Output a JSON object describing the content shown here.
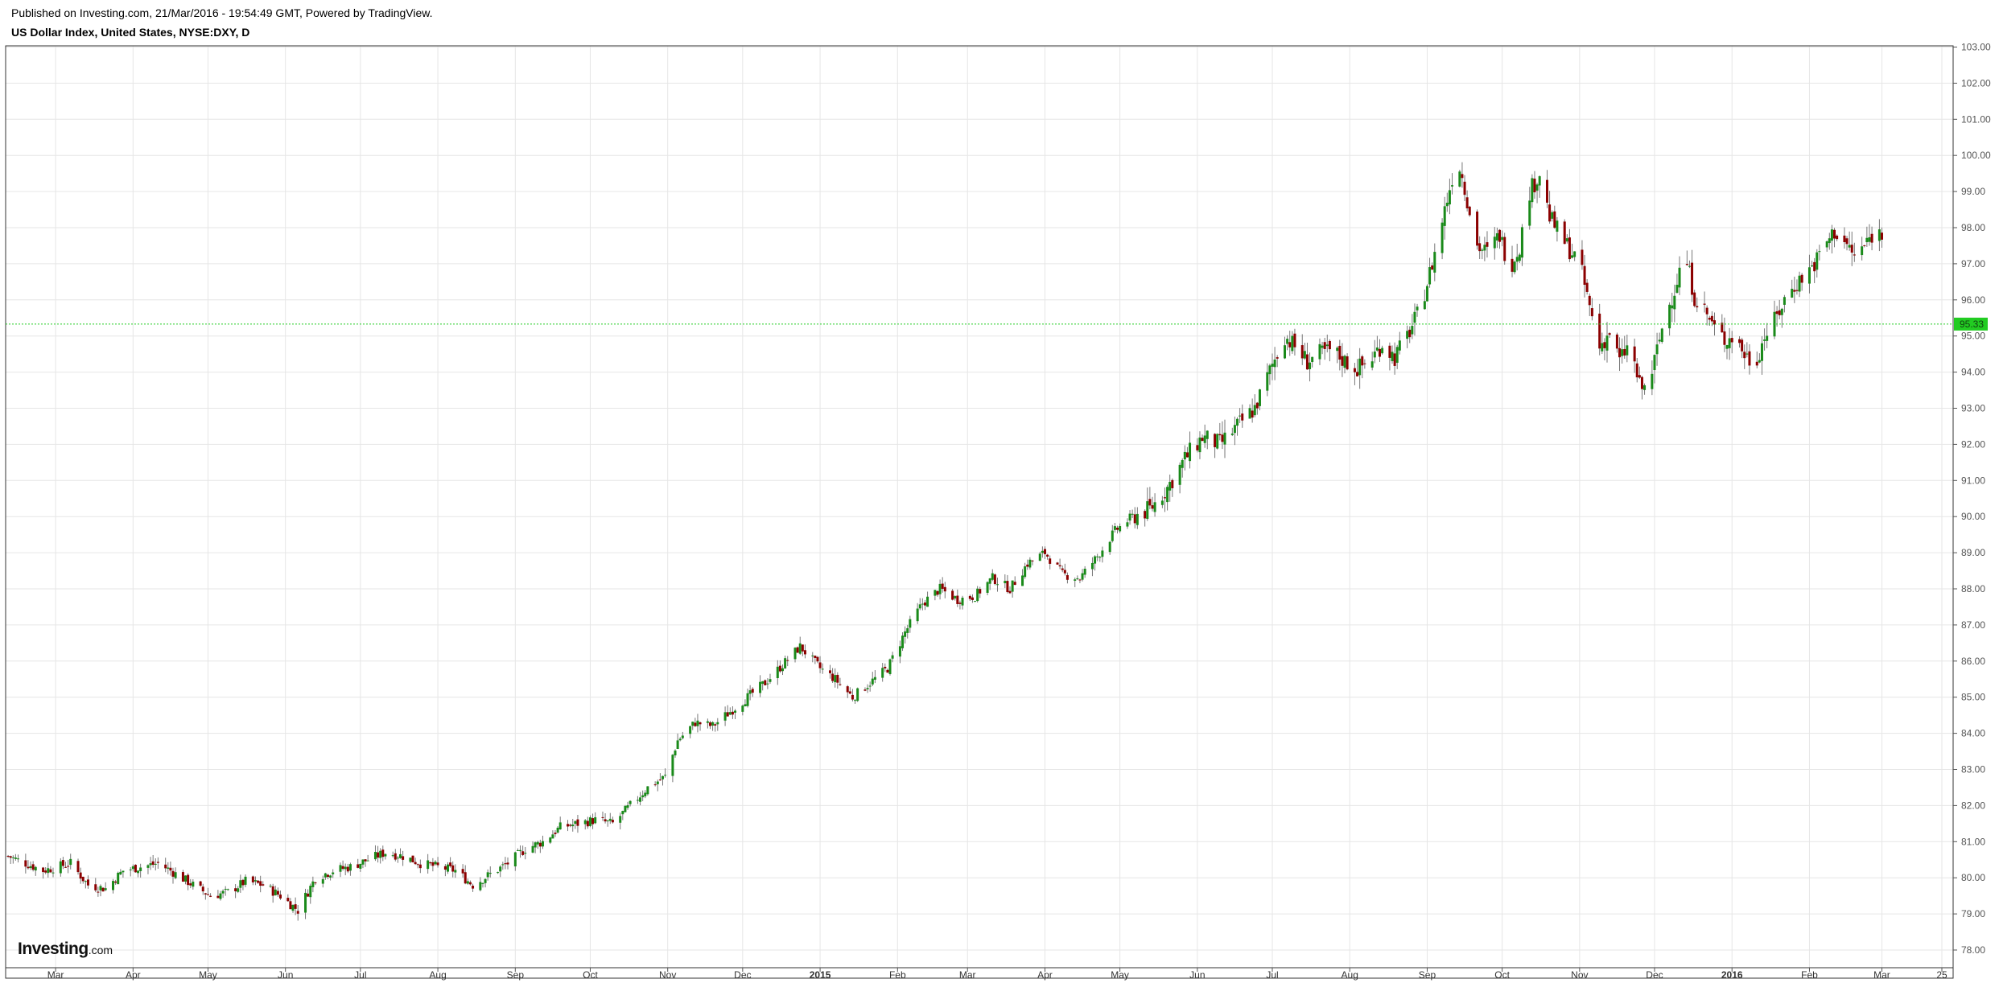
{
  "header": {
    "published": "Published on Investing.com, 21/Mar/2016 - 19:54:49 GMT, Powered by TradingView.",
    "title": "US Dollar Index, United States, NYSE:DXY, D"
  },
  "logo": {
    "bold": "Investing",
    "suffix": ".com"
  },
  "colors": {
    "up": "#1a8a1a",
    "down": "#8b0000",
    "last": "#22cc22",
    "grid": "#e6e6e6"
  },
  "chart_data": {
    "type": "candlestick",
    "title": "US Dollar Index, United States, NYSE:DXY, D",
    "ylim": [
      77.6,
      103.05
    ],
    "y_ticks": [
      "103.00",
      "102.00",
      "101.00",
      "100.00",
      "99.00",
      "98.00",
      "97.00",
      "96.00",
      "95.00",
      "94.00",
      "93.00",
      "92.00",
      "91.00",
      "90.00",
      "89.00",
      "88.00",
      "87.00",
      "86.00",
      "85.00",
      "84.00",
      "83.00",
      "82.00",
      "81.00",
      "80.00",
      "79.00",
      "78.00"
    ],
    "x_ticks": [
      {
        "label": "Mar",
        "date": "2014-03-01"
      },
      {
        "label": "Apr",
        "date": "2014-04-01"
      },
      {
        "label": "May",
        "date": "2014-05-01"
      },
      {
        "label": "Jun",
        "date": "2014-06-01"
      },
      {
        "label": "Jul",
        "date": "2014-07-01"
      },
      {
        "label": "Aug",
        "date": "2014-08-01"
      },
      {
        "label": "Sep",
        "date": "2014-09-01"
      },
      {
        "label": "Oct",
        "date": "2014-10-01"
      },
      {
        "label": "Nov",
        "date": "2014-11-01"
      },
      {
        "label": "Dec",
        "date": "2014-12-01"
      },
      {
        "label": "2015",
        "date": "2015-01-01",
        "bold": true
      },
      {
        "label": "Feb",
        "date": "2015-02-01"
      },
      {
        "label": "Mar",
        "date": "2015-03-01"
      },
      {
        "label": "Apr",
        "date": "2015-04-01"
      },
      {
        "label": "May",
        "date": "2015-05-01"
      },
      {
        "label": "Jun",
        "date": "2015-06-01"
      },
      {
        "label": "Jul",
        "date": "2015-07-01"
      },
      {
        "label": "Aug",
        "date": "2015-08-01"
      },
      {
        "label": "Sep",
        "date": "2015-09-01"
      },
      {
        "label": "Oct",
        "date": "2015-10-01"
      },
      {
        "label": "Nov",
        "date": "2015-11-01"
      },
      {
        "label": "Dec",
        "date": "2015-12-01"
      },
      {
        "label": "2016",
        "date": "2016-01-01",
        "bold": true
      },
      {
        "label": "Feb",
        "date": "2016-02-01"
      },
      {
        "label": "Mar",
        "date": "2016-03-01"
      },
      {
        "label": "25",
        "date": "2016-03-25"
      }
    ],
    "last_price": 95.33,
    "last_price_label": "95.33",
    "series": [
      {
        "values": [
          [
            "2014-02-10",
            80.6
          ],
          [
            "2014-02-24",
            80.2
          ],
          [
            "2014-03-07",
            80.4
          ],
          [
            "2014-03-14",
            79.8
          ],
          [
            "2014-03-21",
            79.7
          ],
          [
            "2014-03-28",
            80.2
          ],
          [
            "2014-04-04",
            80.3
          ],
          [
            "2014-04-11",
            80.4
          ],
          [
            "2014-04-16",
            80.2
          ],
          [
            "2014-04-25",
            79.8
          ],
          [
            "2014-05-02",
            79.5
          ],
          [
            "2014-05-09",
            79.6
          ],
          [
            "2014-05-16",
            79.9
          ],
          [
            "2014-05-23",
            79.8
          ],
          [
            "2014-05-30",
            79.5
          ],
          [
            "2014-06-06",
            79.1
          ],
          [
            "2014-06-13",
            80.0
          ],
          [
            "2014-06-20",
            80.2
          ],
          [
            "2014-06-27",
            80.3
          ],
          [
            "2014-07-04",
            80.5
          ],
          [
            "2014-07-11",
            80.7
          ],
          [
            "2014-07-18",
            80.6
          ],
          [
            "2014-07-25",
            80.4
          ],
          [
            "2014-08-01",
            80.3
          ],
          [
            "2014-08-08",
            80.2
          ],
          [
            "2014-08-15",
            79.8
          ],
          [
            "2014-08-22",
            80.1
          ],
          [
            "2014-08-29",
            80.4
          ],
          [
            "2014-09-05",
            80.8
          ],
          [
            "2014-09-12",
            81.0
          ],
          [
            "2014-09-19",
            81.4
          ],
          [
            "2014-09-26",
            81.5
          ],
          [
            "2014-10-03",
            81.6
          ],
          [
            "2014-10-10",
            81.5
          ],
          [
            "2014-10-17",
            82.0
          ],
          [
            "2014-10-24",
            82.5
          ],
          [
            "2014-10-31",
            82.8
          ],
          [
            "2014-11-05",
            83.8
          ],
          [
            "2014-11-12",
            84.3
          ],
          [
            "2014-11-19",
            84.2
          ],
          [
            "2014-11-26",
            84.6
          ],
          [
            "2014-12-03",
            85.0
          ],
          [
            "2014-12-10",
            85.4
          ],
          [
            "2014-12-17",
            85.9
          ],
          [
            "2014-12-24",
            86.4
          ],
          [
            "2015-01-01",
            85.8
          ],
          [
            "2015-01-07",
            85.5
          ],
          [
            "2015-01-14",
            85.0
          ],
          [
            "2015-01-21",
            85.4
          ],
          [
            "2015-01-28",
            85.8
          ],
          [
            "2015-02-04",
            86.8
          ],
          [
            "2015-02-11",
            87.6
          ],
          [
            "2015-02-18",
            88.0
          ],
          [
            "2015-02-25",
            87.7
          ],
          [
            "2015-03-04",
            87.8
          ],
          [
            "2015-03-11",
            88.3
          ],
          [
            "2015-03-18",
            88.0
          ],
          [
            "2015-03-25",
            88.7
          ],
          [
            "2015-04-01",
            89.0
          ],
          [
            "2015-04-08",
            88.4
          ],
          [
            "2015-04-15",
            88.3
          ],
          [
            "2015-04-22",
            88.9
          ],
          [
            "2015-04-29",
            89.6
          ],
          [
            "2015-05-06",
            90.0
          ],
          [
            "2015-05-13",
            90.2
          ],
          [
            "2015-05-20",
            90.8
          ],
          [
            "2015-05-27",
            91.6
          ],
          [
            "2015-06-03",
            92.2
          ],
          [
            "2015-06-10",
            92.0
          ],
          [
            "2015-06-17",
            92.5
          ],
          [
            "2015-06-24",
            93.0
          ],
          [
            "2015-07-01",
            94.2
          ],
          [
            "2015-07-06",
            95.0
          ],
          [
            "2015-07-10",
            94.7
          ],
          [
            "2015-07-15",
            94.3
          ],
          [
            "2015-07-20",
            94.5
          ],
          [
            "2015-07-25",
            94.6
          ],
          [
            "2015-07-30",
            94.3
          ],
          [
            "2015-08-04",
            94.1
          ],
          [
            "2015-08-09",
            94.3
          ],
          [
            "2015-08-14",
            94.8
          ],
          [
            "2015-08-19",
            94.4
          ],
          [
            "2015-08-24",
            95.0
          ],
          [
            "2015-08-29",
            95.7
          ],
          [
            "2015-09-03",
            97.0
          ],
          [
            "2015-09-08",
            98.5
          ],
          [
            "2015-09-13",
            100.0
          ],
          [
            "2015-09-17",
            98.8
          ],
          [
            "2015-09-21",
            97.5
          ],
          [
            "2015-09-25",
            97.3
          ],
          [
            "2015-09-30",
            97.8
          ],
          [
            "2015-10-04",
            96.9
          ],
          [
            "2015-10-08",
            97.5
          ],
          [
            "2015-10-12",
            99.0
          ],
          [
            "2015-10-16",
            99.5
          ],
          [
            "2015-10-20",
            98.3
          ],
          [
            "2015-10-24",
            97.8
          ],
          [
            "2015-10-28",
            97.4
          ],
          [
            "2015-11-01",
            97.0
          ],
          [
            "2015-11-05",
            95.8
          ],
          [
            "2015-11-09",
            94.7
          ],
          [
            "2015-11-13",
            95.1
          ],
          [
            "2015-11-17",
            94.3
          ],
          [
            "2015-11-21",
            94.8
          ],
          [
            "2015-11-25",
            93.6
          ],
          [
            "2015-11-28",
            93.5
          ],
          [
            "2015-12-01",
            94.3
          ],
          [
            "2015-12-05",
            95.5
          ],
          [
            "2015-12-09",
            96.3
          ],
          [
            "2015-12-13",
            97.3
          ],
          [
            "2015-12-17",
            96.1
          ],
          [
            "2015-12-21",
            95.7
          ],
          [
            "2015-12-25",
            95.2
          ],
          [
            "2015-12-29",
            94.9
          ],
          [
            "2016-01-02",
            95.0
          ],
          [
            "2016-01-06",
            94.5
          ],
          [
            "2016-01-10",
            94.2
          ],
          [
            "2016-01-14",
            95.0
          ],
          [
            "2016-01-18",
            95.4
          ],
          [
            "2016-01-22",
            96.0
          ],
          [
            "2016-01-26",
            96.4
          ],
          [
            "2016-01-30",
            96.7
          ],
          [
            "2016-02-03",
            97.0
          ],
          [
            "2016-02-07",
            97.5
          ],
          [
            "2016-02-11",
            97.9
          ],
          [
            "2016-02-15",
            97.6
          ],
          [
            "2016-02-19",
            97.2
          ],
          [
            "2016-02-23",
            97.5
          ],
          [
            "2016-02-27",
            97.9
          ],
          [
            "2016-03-01",
            97.8
          ]
        ]
      }
    ]
  }
}
